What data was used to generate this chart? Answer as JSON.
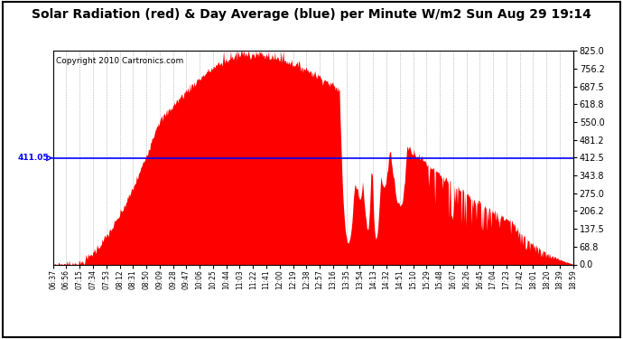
{
  "title": "Solar Radiation (red) & Day Average (blue) per Minute W/m2 Sun Aug 29 19:14",
  "copyright": "Copyright 2010 Cartronics.com",
  "ylabel_right_ticks": [
    0.0,
    68.8,
    137.5,
    206.2,
    275.0,
    343.8,
    412.5,
    481.2,
    550.0,
    618.8,
    687.5,
    756.2,
    825.0
  ],
  "ymin": 0.0,
  "ymax": 825.0,
  "day_average": 411.05,
  "bar_color": "#FF0000",
  "avg_line_color": "#0000FF",
  "background_color": "#FFFFFF",
  "plot_bg_color": "#FFFFFF",
  "grid_color": "#999999",
  "title_fontsize": 10,
  "copyright_fontsize": 7,
  "x_tick_labels": [
    "06:37",
    "06:56",
    "07:15",
    "07:34",
    "07:53",
    "08:12",
    "08:31",
    "08:50",
    "09:09",
    "09:28",
    "09:47",
    "10:06",
    "10:25",
    "10:44",
    "11:03",
    "11:22",
    "11:41",
    "12:00",
    "12:19",
    "12:38",
    "12:57",
    "13:16",
    "13:35",
    "13:54",
    "14:13",
    "14:32",
    "14:51",
    "15:10",
    "15:29",
    "15:48",
    "16:07",
    "16:26",
    "16:45",
    "17:04",
    "17:23",
    "17:42",
    "18:01",
    "18:20",
    "18:39",
    "18:59"
  ]
}
